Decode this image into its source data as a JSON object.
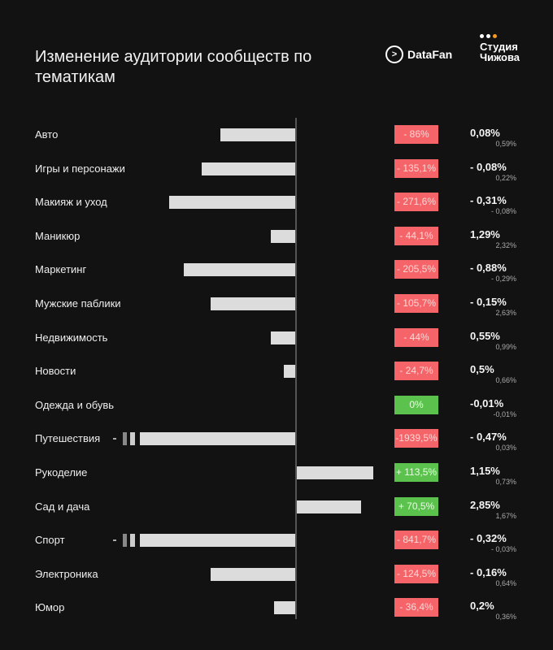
{
  "title": "Изменение аудитории сообществ по тематикам",
  "logos": {
    "datafan": "DataFan",
    "studio": "Студия Чижова"
  },
  "colors": {
    "negative": "#f56468",
    "positive": "#5cc24e",
    "bar": "#dcdcdc",
    "background": "#121212"
  },
  "chart_data": {
    "type": "bar",
    "orientation": "horizontal",
    "categories": [
      "Авто",
      "Игры и персонажи",
      "Макияж и уход",
      "Маникюр",
      "Маркетинг",
      "Мужские паблики",
      "Недвижимость",
      "Новости",
      "Одежда и обувь",
      "Путешествия",
      "Рукоделие",
      "Сад и дача",
      "Спорт",
      "Электроника",
      "Юмор"
    ],
    "values": [
      -86,
      -135.1,
      -271.6,
      -44.1,
      -205.5,
      -105.7,
      -44,
      -24.7,
      0,
      -1939.5,
      113.5,
      70.5,
      -841.7,
      -124.5,
      -36.4
    ],
    "value_labels": [
      "- 86%",
      "- 135,1%",
      "- 271,6%",
      "- 44,1%",
      "- 205,5%",
      "- 105,7%",
      "- 44%",
      "- 24,7%",
      "0%",
      "-1939,5%",
      "+ 113,5%",
      "+ 70,5%",
      "- 841,7%",
      "- 124,5%",
      "- 36,4%"
    ],
    "broken_axis_categories": [
      "Путешествия",
      "Спорт"
    ],
    "secondary_primary": [
      "0,08%",
      "- 0,08%",
      "- 0,31%",
      "1,29%",
      "- 0,88%",
      "- 0,15%",
      "0,55%",
      "0,5%",
      "-0,01%",
      "- 0,47%",
      "1,15%",
      "2,85%",
      "- 0,32%",
      "- 0,16%",
      "0,2%"
    ],
    "secondary_small": [
      "0,59%",
      "0,22%",
      "- 0,08%",
      "2,32%",
      "- 0,29%",
      "2,63%",
      "0,99%",
      "0,66%",
      "-0,01%",
      "0,03%",
      "0,73%",
      "1,67%",
      "- 0,03%",
      "0,64%",
      "0,36%"
    ]
  }
}
